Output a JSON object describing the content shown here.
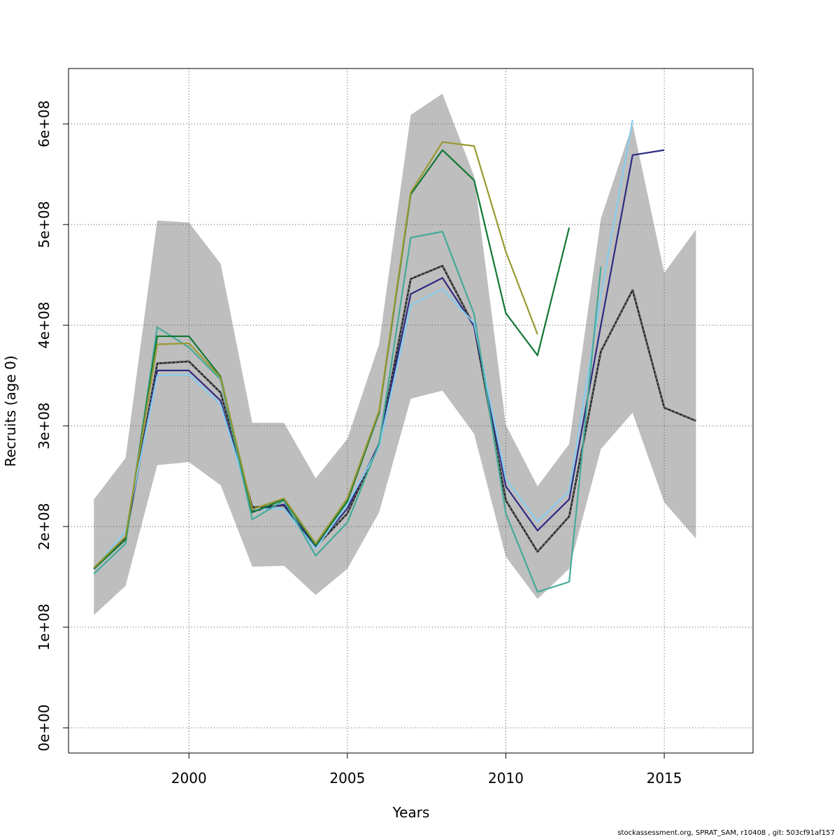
{
  "footer": "stockassessment.org, SPRAT_SAM, r10408 , git: 503cf91af157",
  "chart_data": {
    "type": "line",
    "title": "",
    "xlabel": "Years",
    "ylabel": "Recruits (age 0)",
    "xlim": [
      1996.2,
      2017.8
    ],
    "ylim": [
      -25000000,
      655000000
    ],
    "grid": true,
    "x_ticks": [
      2000,
      2005,
      2010,
      2015
    ],
    "x_tick_labels": [
      "2000",
      "2005",
      "2010",
      "2015"
    ],
    "y_ticks": [
      0,
      100000000,
      200000000,
      300000000,
      400000000,
      500000000,
      600000000
    ],
    "y_tick_labels": [
      "0e+00",
      "1e+08",
      "2e+08",
      "3e+08",
      "4e+08",
      "5e+08",
      "6e+08"
    ],
    "confidence_band": {
      "x": [
        1997,
        1998,
        1999,
        2000,
        2001,
        2002,
        2003,
        2004,
        2005,
        2006,
        2007,
        2008,
        2009,
        2010,
        2011,
        2012,
        2013,
        2014,
        2015,
        2016
      ],
      "upper": [
        227000000,
        268000000,
        504000000,
        502000000,
        461000000,
        303000000,
        303000000,
        248000000,
        287000000,
        381000000,
        609000000,
        630000000,
        548000000,
        301000000,
        240000000,
        282000000,
        506000000,
        600000000,
        452000000,
        495000000
      ],
      "lower": [
        112000000,
        141000000,
        261000000,
        264000000,
        241000000,
        160000000,
        161000000,
        132000000,
        158000000,
        214000000,
        327000000,
        335000000,
        292000000,
        170000000,
        128000000,
        158000000,
        277000000,
        313000000,
        224000000,
        188000000
      ],
      "color": "#bebebe"
    },
    "series": [
      {
        "color": "#222222",
        "dashed": true,
        "x": [
          1997,
          1998,
          1999,
          2000,
          2001,
          2002,
          2003,
          2004,
          2005,
          2006,
          2007,
          2008,
          2009,
          2010,
          2011,
          2012,
          2013,
          2014,
          2015,
          2016
        ],
        "values": [
          158000000,
          188000000,
          362000000,
          364000000,
          333000000,
          219000000,
          221000000,
          180000000,
          213000000,
          282000000,
          446000000,
          459000000,
          399000000,
          226000000,
          175000000,
          210000000,
          374000000,
          435000000,
          318000000,
          305000000
        ]
      },
      {
        "color": "#2e2a82",
        "x": [
          1997,
          1998,
          1999,
          2000,
          2001,
          2002,
          2003,
          2004,
          2005,
          2006,
          2007,
          2008,
          2009,
          2010,
          2011,
          2012,
          2013,
          2014,
          2015
        ],
        "values": [
          158000000,
          190000000,
          355000000,
          355000000,
          325000000,
          215000000,
          222000000,
          180000000,
          218000000,
          282000000,
          431000000,
          447000000,
          399000000,
          240000000,
          196000000,
          227000000,
          400000000,
          569000000,
          574000000
        ]
      },
      {
        "color": "#85cdee",
        "x": [
          1997,
          1998,
          1999,
          2000,
          2001,
          2002,
          2003,
          2004,
          2005,
          2006,
          2007,
          2008,
          2009,
          2010,
          2011,
          2012,
          2013,
          2014
        ],
        "values": [
          158000000,
          195000000,
          350000000,
          351000000,
          321000000,
          217000000,
          218000000,
          178000000,
          222000000,
          279000000,
          420000000,
          436000000,
          402000000,
          247000000,
          205000000,
          235000000,
          430000000,
          604000000
        ]
      },
      {
        "color": "#44aa99",
        "x": [
          1997,
          1998,
          1999,
          2000,
          2001,
          2002,
          2003,
          2004,
          2005,
          2006,
          2007,
          2008,
          2009,
          2010,
          2011,
          2012,
          2013
        ],
        "values": [
          153000000,
          183000000,
          398000000,
          378000000,
          346000000,
          207000000,
          226000000,
          171000000,
          204000000,
          282000000,
          487000000,
          493000000,
          411000000,
          213000000,
          135000000,
          145000000,
          458000000
        ]
      },
      {
        "color": "#117733",
        "x": [
          1997,
          1998,
          1999,
          2000,
          2001,
          2002,
          2003,
          2004,
          2005,
          2006,
          2007,
          2008,
          2009,
          2010,
          2011,
          2012
        ],
        "values": [
          158000000,
          187000000,
          389000000,
          389000000,
          349000000,
          214000000,
          227000000,
          181000000,
          225000000,
          313000000,
          530000000,
          574000000,
          544000000,
          412000000,
          370000000,
          497000000
        ]
      },
      {
        "color": "#999933",
        "x": [
          1997,
          1998,
          1999,
          2000,
          2001,
          2002,
          2003,
          2004,
          2005,
          2006,
          2007,
          2008,
          2009,
          2010,
          2011
        ],
        "values": [
          159000000,
          190000000,
          381000000,
          382000000,
          348000000,
          217000000,
          228000000,
          183000000,
          228000000,
          315000000,
          532000000,
          582000000,
          578000000,
          473000000,
          391000000
        ]
      }
    ]
  }
}
